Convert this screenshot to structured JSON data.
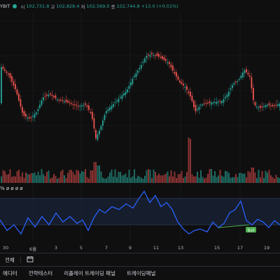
{
  "header": {
    "symbol_suffix": "YBIT",
    "open_label": "시",
    "open_value": "102,731.8",
    "high_label": "고",
    "high_value": "102,828.4",
    "low_label": "저",
    "low_value": "102,569.0",
    "close_label": "종",
    "close_value": "102,744.8",
    "change": "+13.0 (+0.01%)"
  },
  "oscillator_label": "% ø ø ø ø",
  "oscillator_badge": "Bull",
  "x_axis_labels": [
    {
      "label": "30"
    },
    {
      "label": "6월"
    },
    {
      "label": "3"
    },
    {
      "label": "5"
    },
    {
      "label": "7"
    },
    {
      "label": "9"
    },
    {
      "label": "11"
    },
    {
      "label": "13"
    },
    {
      "label": "15"
    },
    {
      "label": "17"
    },
    {
      "label": "19"
    }
  ],
  "toolbar": {
    "all_label": "전체"
  },
  "bottom_tabs": [
    "에디터",
    "전략테스터",
    "리플레이 트레이딩 패널",
    "트레이딩패널"
  ],
  "colors": {
    "up": "#26a69a",
    "down": "#ef5350",
    "osc_line": "#2962ff",
    "bull_line": "#4caf50"
  }
}
